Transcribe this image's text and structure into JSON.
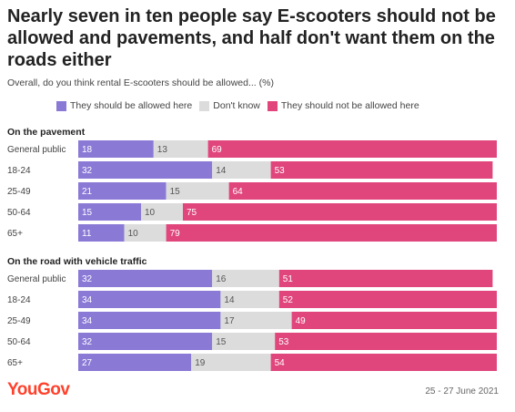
{
  "title": "Nearly seven in ten people say E-scooters should not be allowed and pavements, and half don't want them on the roads either",
  "subtitle": "Overall, do you think rental E-scooters should be allowed... (%)",
  "colors": {
    "allowed": "#8b79d6",
    "dont_know": "#dcdcdc",
    "not_allowed": "#e0457b"
  },
  "legend": [
    {
      "label": "They should be allowed here",
      "color": "#8b79d6"
    },
    {
      "label": "Don't know",
      "color": "#dcdcdc"
    },
    {
      "label": "They should not be allowed here",
      "color": "#e0457b"
    }
  ],
  "footer": {
    "brand": "YouGov",
    "date": "25 - 27 June 2021"
  },
  "chart_data": {
    "type": "bar",
    "orientation": "horizontal",
    "stacked": true,
    "series_names": [
      "They should be allowed here",
      "Don't know",
      "They should not be allowed here"
    ],
    "groups": [
      {
        "label": "On the pavement",
        "rows": [
          {
            "category": "General public",
            "values": [
              18,
              13,
              69
            ]
          },
          {
            "category": "18-24",
            "values": [
              32,
              14,
              53
            ]
          },
          {
            "category": "25-49",
            "values": [
              21,
              15,
              64
            ]
          },
          {
            "category": "50-64",
            "values": [
              15,
              10,
              75
            ]
          },
          {
            "category": "65+",
            "values": [
              11,
              10,
              79
            ]
          }
        ]
      },
      {
        "label": "On the road with vehicle traffic",
        "rows": [
          {
            "category": "General public",
            "values": [
              32,
              16,
              51
            ]
          },
          {
            "category": "18-24",
            "values": [
              34,
              14,
              52
            ]
          },
          {
            "category": "25-49",
            "values": [
              34,
              17,
              49
            ]
          },
          {
            "category": "50-64",
            "values": [
              32,
              15,
              53
            ]
          },
          {
            "category": "65+",
            "values": [
              27,
              19,
              54
            ]
          }
        ]
      }
    ]
  }
}
